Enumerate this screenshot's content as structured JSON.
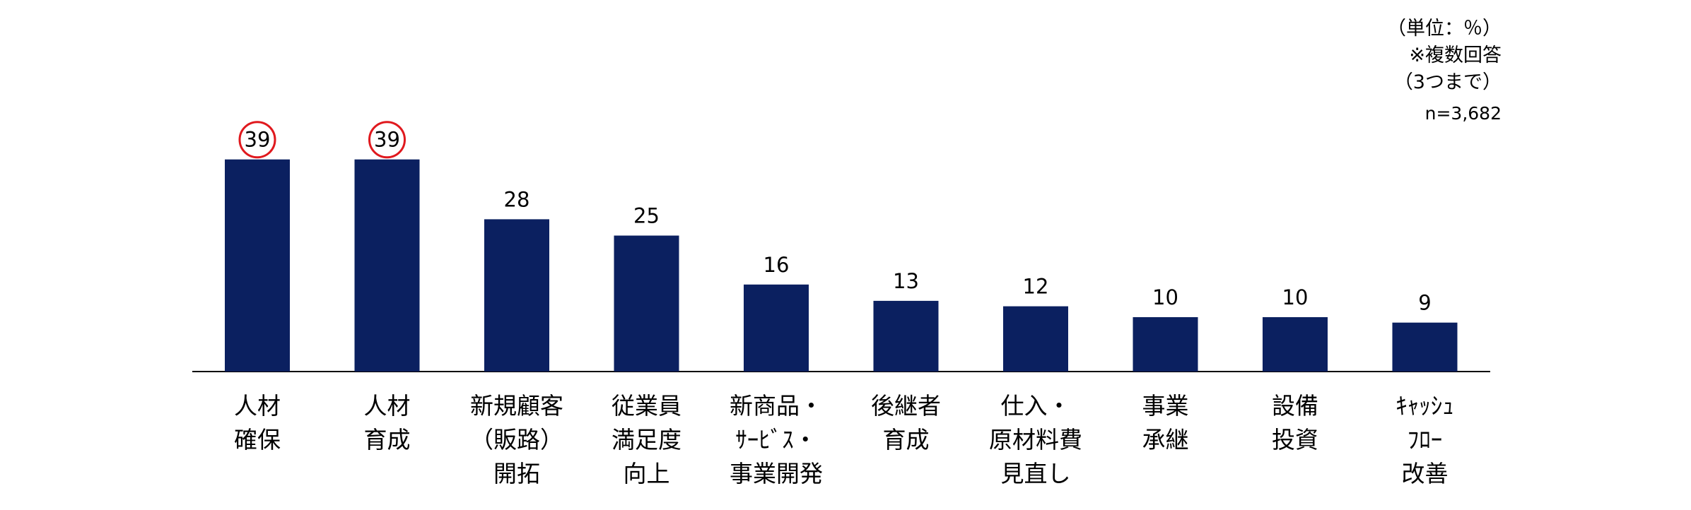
{
  "chart_data": {
    "type": "bar",
    "notes": {
      "unit": "（単位：％）",
      "multiple": "※複数回答",
      "limit": "（3つまで）",
      "n": "n=3,682"
    },
    "categories": [
      [
        "人材",
        "確保"
      ],
      [
        "人材",
        "育成"
      ],
      [
        "新規顧客",
        "（販路）",
        "開拓"
      ],
      [
        "従業員",
        "満足度",
        "向上"
      ],
      [
        "新商品・",
        "ｻｰﾋﾞｽ・",
        "事業開発"
      ],
      [
        "後継者",
        "育成"
      ],
      [
        "仕入・",
        "原材料費",
        "見直し"
      ],
      [
        "事業",
        "承継"
      ],
      [
        "設備",
        "投資"
      ],
      [
        "ｷｬｯｼｭ",
        "ﾌﾛｰ",
        "改善"
      ]
    ],
    "values": [
      39,
      39,
      28,
      25,
      16,
      13,
      12,
      10,
      10,
      9
    ],
    "highlighted": [
      0,
      1
    ],
    "ylim": [
      0,
      50
    ],
    "colors": {
      "bar": "#0b2060",
      "highlight_circle": "#e0191e",
      "axis": "#000000"
    }
  }
}
